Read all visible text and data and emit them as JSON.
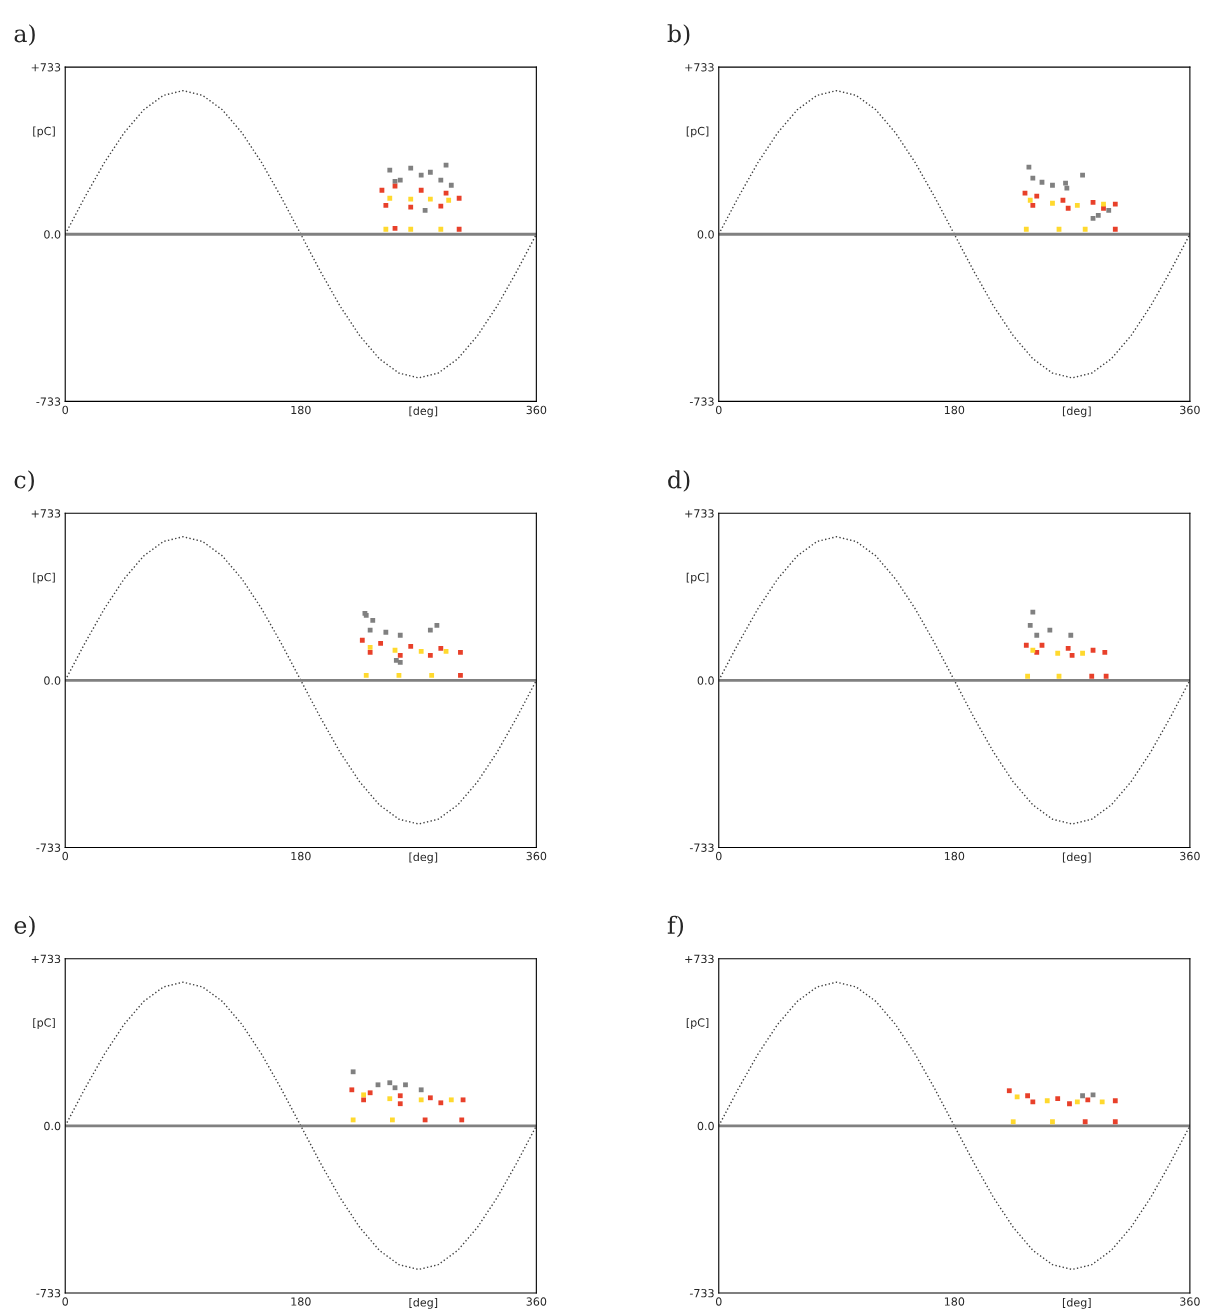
{
  "chart_data": [
    {
      "type": "scatter",
      "title": "a)",
      "xlabel": "[deg]",
      "ylabel": "[pC]",
      "xlim": [
        0,
        360
      ],
      "ylim": [
        -733,
        733
      ],
      "xticks": [
        0,
        180,
        360
      ],
      "yticks": [
        {
          "value": 733,
          "label": "+733"
        },
        {
          "value": 0,
          "label": "0.0"
        },
        {
          "value": -733,
          "label": "-733"
        }
      ],
      "marker": "square",
      "ref_lines": [
        {
          "axis": "y",
          "value": 0,
          "color": "#808080"
        }
      ],
      "series": [
        {
          "type": "line",
          "line_style": "dotted",
          "marker": "none",
          "color": "#404040",
          "x": [
            0,
            15,
            30,
            45,
            60,
            75,
            90,
            105,
            120,
            135,
            150,
            165,
            180,
            195,
            210,
            225,
            240,
            255,
            270,
            285,
            300,
            315,
            330,
            345,
            360
          ],
          "values": [
            0,
            163,
            315,
            445,
            546,
            609,
            630,
            609,
            546,
            445,
            315,
            163,
            0,
            -163,
            -315,
            -445,
            -546,
            -609,
            -630,
            -609,
            -546,
            -445,
            -315,
            -163,
            0
          ]
        },
        {
          "color": "#808080",
          "x": [
            248,
            256,
            264,
            272,
            279,
            287,
            295,
            252,
            291,
            275
          ],
          "values": [
            281,
            237,
            290,
            259,
            272,
            237,
            215,
            232,
            303,
            105
          ]
        },
        {
          "color": "#e8402a",
          "x": [
            242,
            252,
            272,
            291,
            301,
            245,
            264,
            287,
            301,
            252
          ],
          "values": [
            193,
            211,
            193,
            180,
            158,
            127,
            119,
            123,
            22,
            26
          ]
        },
        {
          "color": "#ffd92e",
          "x": [
            248,
            264,
            279,
            293,
            245,
            264,
            287
          ],
          "values": [
            158,
            154,
            154,
            149,
            22,
            22,
            22
          ]
        }
      ]
    },
    {
      "type": "scatter",
      "title": "b)",
      "xlabel": "[deg]",
      "ylabel": "[pC]",
      "xlim": [
        0,
        360
      ],
      "ylim": [
        -733,
        733
      ],
      "xticks": [
        0,
        180,
        360
      ],
      "yticks": [
        {
          "value": 733,
          "label": "+733"
        },
        {
          "value": 0,
          "label": "0.0"
        },
        {
          "value": -733,
          "label": "-733"
        }
      ],
      "marker": "square",
      "ref_lines": [
        {
          "axis": "y",
          "value": 0,
          "color": "#808080"
        }
      ],
      "series": [
        {
          "type": "line",
          "line_style": "dotted",
          "marker": "none",
          "color": "#404040",
          "x": [
            0,
            15,
            30,
            45,
            60,
            75,
            90,
            105,
            120,
            135,
            150,
            165,
            180,
            195,
            210,
            225,
            240,
            255,
            270,
            285,
            300,
            315,
            330,
            345,
            360
          ],
          "values": [
            0,
            163,
            315,
            445,
            546,
            609,
            630,
            609,
            546,
            445,
            315,
            163,
            0,
            -163,
            -315,
            -445,
            -546,
            -609,
            -630,
            -609,
            -546,
            -445,
            -315,
            -163,
            0
          ]
        },
        {
          "color": "#808080",
          "x": [
            237,
            240,
            247,
            255,
            265,
            278,
            266,
            286,
            290,
            298
          ],
          "values": [
            294,
            246,
            228,
            215,
            224,
            259,
            202,
            70,
            83,
            105
          ]
        },
        {
          "color": "#e8402a",
          "x": [
            234,
            243,
            263,
            286,
            303,
            240,
            267,
            294,
            303
          ],
          "values": [
            180,
            167,
            149,
            140,
            132,
            127,
            114,
            114,
            22
          ]
        },
        {
          "color": "#ffd92e",
          "x": [
            238,
            255,
            274,
            294,
            235,
            260,
            280
          ],
          "values": [
            149,
            136,
            127,
            132,
            22,
            22,
            22
          ]
        }
      ]
    },
    {
      "type": "scatter",
      "title": "c)",
      "xlabel": "[deg]",
      "ylabel": "[pC]",
      "xlim": [
        0,
        360
      ],
      "ylim": [
        -733,
        733
      ],
      "xticks": [
        0,
        180,
        360
      ],
      "yticks": [
        {
          "value": 733,
          "label": "+733"
        },
        {
          "value": 0,
          "label": "0.0"
        },
        {
          "value": -733,
          "label": "-733"
        }
      ],
      "marker": "square",
      "ref_lines": [
        {
          "axis": "y",
          "value": 0,
          "color": "#808080"
        }
      ],
      "series": [
        {
          "type": "line",
          "line_style": "dotted",
          "marker": "none",
          "color": "#404040",
          "x": [
            0,
            15,
            30,
            45,
            60,
            75,
            90,
            105,
            120,
            135,
            150,
            165,
            180,
            195,
            210,
            225,
            240,
            255,
            270,
            285,
            300,
            315,
            330,
            345,
            360
          ],
          "values": [
            0,
            163,
            315,
            445,
            546,
            609,
            630,
            609,
            546,
            445,
            315,
            163,
            0,
            -163,
            -315,
            -445,
            -546,
            -609,
            -630,
            -609,
            -546,
            -445,
            -315,
            -163,
            0
          ]
        },
        {
          "color": "#808080",
          "x": [
            230,
            235,
            233,
            245,
            256,
            279,
            284,
            253,
            256,
            229
          ],
          "values": [
            285,
            263,
            220,
            211,
            198,
            220,
            241,
            88,
            79,
            294
          ]
        },
        {
          "color": "#e8402a",
          "x": [
            227,
            241,
            264,
            287,
            302,
            233,
            256,
            279,
            302
          ],
          "values": [
            176,
            162,
            149,
            140,
            123,
            123,
            110,
            110,
            22
          ]
        },
        {
          "color": "#ffd92e",
          "x": [
            233,
            252,
            272,
            291,
            230,
            255,
            280
          ],
          "values": [
            145,
            132,
            127,
            127,
            22,
            22,
            22
          ]
        }
      ]
    },
    {
      "type": "scatter",
      "title": "d)",
      "xlabel": "[deg]",
      "ylabel": "[pC]",
      "xlim": [
        0,
        360
      ],
      "ylim": [
        -733,
        733
      ],
      "xticks": [
        0,
        180,
        360
      ],
      "yticks": [
        {
          "value": 733,
          "label": "+733"
        },
        {
          "value": 0,
          "label": "0.0"
        },
        {
          "value": -733,
          "label": "-733"
        }
      ],
      "marker": "square",
      "ref_lines": [
        {
          "axis": "y",
          "value": 0,
          "color": "#808080"
        }
      ],
      "series": [
        {
          "type": "line",
          "line_style": "dotted",
          "marker": "none",
          "color": "#404040",
          "x": [
            0,
            15,
            30,
            45,
            60,
            75,
            90,
            105,
            120,
            135,
            150,
            165,
            180,
            195,
            210,
            225,
            240,
            255,
            270,
            285,
            300,
            315,
            330,
            345,
            360
          ],
          "values": [
            0,
            163,
            315,
            445,
            546,
            609,
            630,
            609,
            546,
            445,
            315,
            163,
            0,
            -163,
            -315,
            -445,
            -546,
            -609,
            -630,
            -609,
            -546,
            -445,
            -315,
            -163,
            0
          ]
        },
        {
          "color": "#808080",
          "x": [
            238,
            243,
            253,
            269,
            240
          ],
          "values": [
            241,
            198,
            220,
            198,
            299
          ]
        },
        {
          "color": "#e8402a",
          "x": [
            235,
            247,
            267,
            286,
            295,
            243,
            270,
            285,
            296
          ],
          "values": [
            154,
            154,
            140,
            132,
            123,
            123,
            110,
            18,
            18
          ]
        },
        {
          "color": "#ffd92e",
          "x": [
            240,
            259,
            278,
            236,
            260
          ],
          "values": [
            132,
            119,
            119,
            18,
            18
          ]
        }
      ]
    },
    {
      "type": "scatter",
      "title": "e)",
      "xlabel": "[deg]",
      "ylabel": "[pC]",
      "xlim": [
        0,
        360
      ],
      "ylim": [
        -733,
        733
      ],
      "xticks": [
        0,
        180,
        360
      ],
      "yticks": [
        {
          "value": 733,
          "label": "+733"
        },
        {
          "value": 0,
          "label": "0.0"
        },
        {
          "value": -733,
          "label": "-733"
        }
      ],
      "marker": "square",
      "ref_lines": [
        {
          "axis": "y",
          "value": 0,
          "color": "#808080"
        }
      ],
      "series": [
        {
          "type": "line",
          "line_style": "dotted",
          "marker": "none",
          "color": "#404040",
          "x": [
            0,
            15,
            30,
            45,
            60,
            75,
            90,
            105,
            120,
            135,
            150,
            165,
            180,
            195,
            210,
            225,
            240,
            255,
            270,
            285,
            300,
            315,
            330,
            345,
            360
          ],
          "values": [
            0,
            163,
            315,
            445,
            546,
            609,
            630,
            609,
            546,
            445,
            315,
            163,
            0,
            -163,
            -315,
            -445,
            -546,
            -609,
            -630,
            -609,
            -546,
            -445,
            -315,
            -163,
            0
          ]
        },
        {
          "color": "#808080",
          "x": [
            220,
            239,
            248,
            252,
            260,
            272
          ],
          "values": [
            237,
            180,
            189,
            167,
            180,
            158
          ]
        },
        {
          "color": "#e8402a",
          "x": [
            219,
            233,
            256,
            279,
            304,
            228,
            256,
            287,
            275,
            303
          ],
          "values": [
            158,
            145,
            132,
            123,
            114,
            114,
            97,
            101,
            26,
            26
          ]
        },
        {
          "color": "#ffd92e",
          "x": [
            228,
            248,
            272,
            295,
            220,
            250
          ],
          "values": [
            136,
            119,
            114,
            114,
            26,
            26
          ]
        }
      ]
    },
    {
      "type": "scatter",
      "title": "f)",
      "xlabel": "[deg]",
      "ylabel": "[pC]",
      "xlim": [
        0,
        360
      ],
      "ylim": [
        -733,
        733
      ],
      "xticks": [
        0,
        180,
        360
      ],
      "yticks": [
        {
          "value": 733,
          "label": "+733"
        },
        {
          "value": 0,
          "label": "0.0"
        },
        {
          "value": -733,
          "label": "-733"
        }
      ],
      "marker": "square",
      "ref_lines": [
        {
          "axis": "y",
          "value": 0,
          "color": "#808080"
        }
      ],
      "series": [
        {
          "type": "line",
          "line_style": "dotted",
          "marker": "none",
          "color": "#404040",
          "x": [
            0,
            15,
            30,
            45,
            60,
            75,
            90,
            105,
            120,
            135,
            150,
            165,
            180,
            195,
            210,
            225,
            240,
            255,
            270,
            285,
            300,
            315,
            330,
            345,
            360
          ],
          "values": [
            0,
            163,
            315,
            445,
            546,
            609,
            630,
            609,
            546,
            445,
            315,
            163,
            0,
            -163,
            -315,
            -445,
            -546,
            -609,
            -630,
            -609,
            -546,
            -445,
            -315,
            -163,
            0
          ]
        },
        {
          "color": "#808080",
          "x": [
            278,
            286
          ],
          "values": [
            132,
            136
          ]
        },
        {
          "color": "#e8402a",
          "x": [
            222,
            236,
            259,
            282,
            303,
            240,
            268,
            280,
            303
          ],
          "values": [
            154,
            132,
            119,
            114,
            110,
            105,
            97,
            18,
            18
          ]
        },
        {
          "color": "#ffd92e",
          "x": [
            228,
            251,
            274,
            293,
            225,
            255
          ],
          "values": [
            127,
            110,
            105,
            105,
            18,
            18
          ]
        }
      ]
    }
  ]
}
